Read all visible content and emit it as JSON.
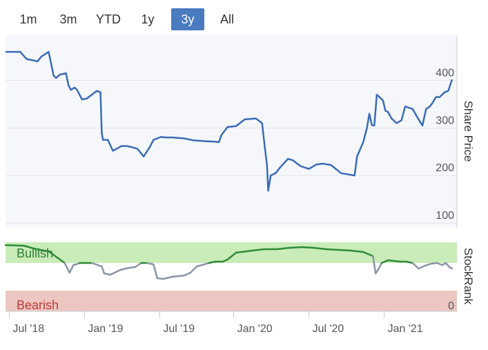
{
  "range_selector": {
    "buttons": [
      {
        "label": "1m",
        "active": false
      },
      {
        "label": "3m",
        "active": false
      },
      {
        "label": "YTD",
        "active": false
      },
      {
        "label": "1y",
        "active": false
      },
      {
        "label": "3y",
        "active": true
      },
      {
        "label": "All",
        "active": false
      }
    ]
  },
  "colors": {
    "price_line": "#3a6bb5",
    "price_bg": "#f5f7fb",
    "bullish_zone": "#c9ecb9",
    "bearish_zone": "#ecc7c1",
    "bullish_line": "#2e8b37",
    "neutral_line": "#8a94a6",
    "bullish_text": "#2e7d32",
    "bearish_text": "#c0393b",
    "grid": "#e3e6ec",
    "accent": "#4a7bc0"
  },
  "chart_data": [
    {
      "type": "line",
      "title": "",
      "ylabel": "Share Price",
      "ylim": [
        90,
        495
      ],
      "yticks": [
        100,
        200,
        300,
        400
      ],
      "yticklabels": [
        "100",
        "200",
        "300",
        "400"
      ],
      "xlim": [
        0,
        36.6
      ],
      "xticks": [
        0.3,
        6.4,
        12.5,
        18.5,
        24.6,
        30.7
      ],
      "xticklabels": [
        "Jul '18",
        "Jan '19",
        "Jul '19",
        "Jan '20",
        "Jul '20",
        "Jan '21"
      ],
      "series": [
        {
          "name": "Share Price",
          "x": [
            0,
            1.2,
            1.7,
            2.6,
            2.9,
            3.5,
            3.9,
            4.1,
            4.4,
            4.9,
            5.1,
            5.3,
            5.6,
            5.8,
            6.2,
            6.6,
            7.0,
            7.4,
            7.7,
            7.8,
            7.9,
            8.3,
            8.7,
            9.0,
            9.4,
            9.8,
            10.2,
            10.7,
            11.2,
            11.7,
            12.0,
            12.3,
            12.6,
            13.0,
            13.5,
            14.5,
            15.2,
            16.3,
            17.0,
            17.3,
            17.5,
            18.0,
            18.7,
            19.4,
            20.3,
            20.8,
            21.0,
            21.2,
            21.3,
            21.5,
            21.9,
            22.3,
            22.9,
            23.3,
            23.9,
            24.1,
            24.6,
            25.2,
            25.7,
            26.4,
            27.2,
            28.3,
            28.5,
            29.0,
            29.3,
            29.5,
            29.7,
            29.9,
            30.1,
            30.6,
            30.8,
            31.0,
            31.3,
            31.7,
            32.1,
            32.4,
            33.0,
            33.4,
            33.8,
            34.1,
            34.4,
            34.6,
            34.9,
            35.2,
            35.6,
            35.9,
            36.2
          ],
          "values": [
            460,
            460,
            445,
            440,
            450,
            460,
            410,
            405,
            412,
            415,
            390,
            380,
            385,
            380,
            360,
            362,
            370,
            378,
            375,
            290,
            275,
            275,
            252,
            256,
            262,
            262,
            260,
            256,
            240,
            260,
            275,
            278,
            281,
            280,
            280,
            278,
            274,
            272,
            271,
            270,
            285,
            302,
            304,
            318,
            320,
            310,
            265,
            222,
            168,
            200,
            205,
            218,
            235,
            232,
            220,
            218,
            214,
            223,
            225,
            222,
            205,
            200,
            240,
            270,
            300,
            330,
            306,
            305,
            370,
            358,
            336,
            334,
            320,
            310,
            316,
            345,
            340,
            322,
            305,
            340,
            345,
            352,
            365,
            365,
            375,
            378,
            402
          ]
        }
      ]
    },
    {
      "type": "area",
      "title": "",
      "ylabel": "StockRank",
      "ylim": [
        0,
        100
      ],
      "yticks": [
        0
      ],
      "yticklabels": [
        "0"
      ],
      "zones": [
        {
          "label": "Bullish",
          "from": 70,
          "to": 100
        },
        {
          "label": "Bearish",
          "from": 0,
          "to": 30
        }
      ],
      "series": [
        {
          "name": "StockRank",
          "x": [
            0,
            1.5,
            2.5,
            3.5,
            4.8,
            5.2,
            5.5,
            5.7,
            6.0,
            7.0,
            7.8,
            8.0,
            8.5,
            9.3,
            10.0,
            10.5,
            11.0,
            11.5,
            12.0,
            12.3,
            12.8,
            13.5,
            14.5,
            15.0,
            15.5,
            16.5,
            17.0,
            17.6,
            18.0,
            18.7,
            20.0,
            21.0,
            22.0,
            23.0,
            24.0,
            25.0,
            26.0,
            27.0,
            28.0,
            29.0,
            29.8,
            30.0,
            30.2,
            30.5,
            31.0,
            31.5,
            32.0,
            32.5,
            33.0,
            33.5,
            34.0,
            34.5,
            35.0,
            35.4,
            35.7,
            36.0,
            36.2
          ],
          "values": [
            96,
            95,
            90,
            87,
            70,
            56,
            67,
            68,
            70,
            70,
            65,
            55,
            53,
            60,
            63,
            64,
            70,
            70,
            68,
            48,
            47,
            50,
            52,
            56,
            65,
            70,
            72,
            72,
            75,
            85,
            88,
            90,
            90,
            92,
            93,
            92,
            90,
            89,
            88,
            86,
            80,
            55,
            60,
            70,
            74,
            73,
            72,
            72,
            70,
            62,
            66,
            69,
            70,
            67,
            70,
            64,
            62
          ]
        }
      ]
    }
  ]
}
